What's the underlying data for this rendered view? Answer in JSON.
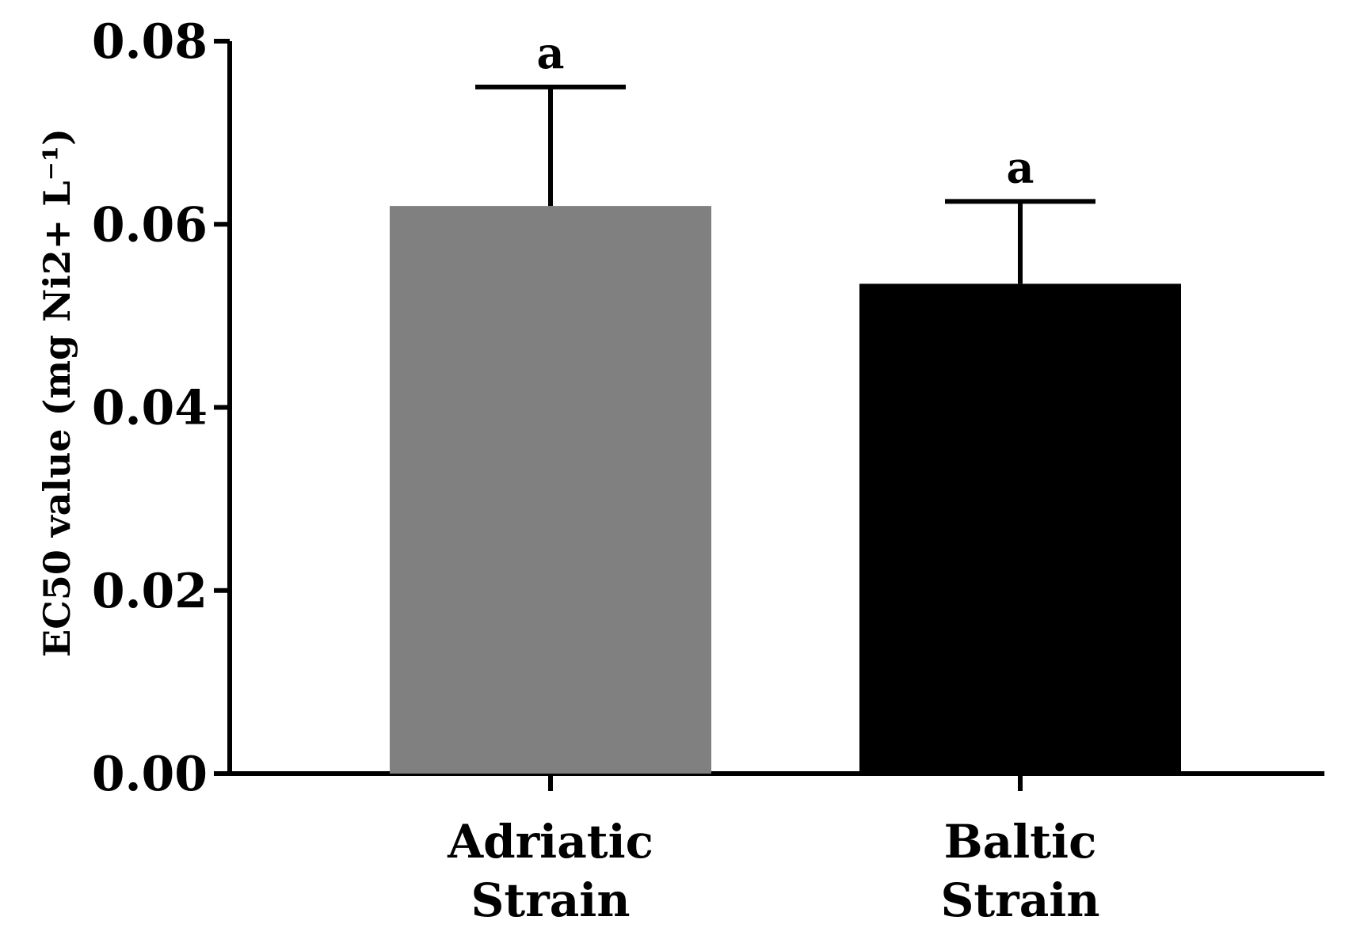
{
  "chart_data": {
    "type": "bar",
    "title": "",
    "xlabel": "",
    "ylabel": "EC50 value (mg Ni2+ L⁻¹)",
    "ylim": [
      0,
      0.08
    ],
    "yticks": [
      "0.00",
      "0.02",
      "0.04",
      "0.06",
      "0.08"
    ],
    "categories": [
      {
        "lines": [
          "Adriatic",
          "Strain"
        ],
        "value": 0.062,
        "error": 0.013,
        "color": "#808080",
        "significance": "a"
      },
      {
        "lines": [
          "Baltic",
          "Strain"
        ],
        "value": 0.0535,
        "error": 0.009,
        "color": "#000000",
        "significance": "a"
      }
    ],
    "grid": false,
    "legend": "none"
  }
}
